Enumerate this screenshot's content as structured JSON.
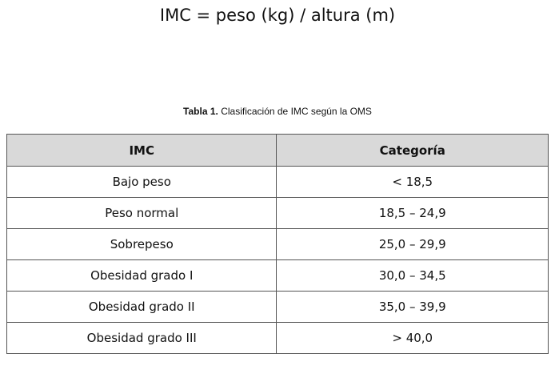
{
  "formula": "IMC = peso (kg) / altura (m)",
  "caption": {
    "label": "Tabla 1.",
    "text": "Clasificación de IMC según la OMS"
  },
  "table": {
    "headers": [
      "IMC",
      "Categoría"
    ],
    "rows": [
      [
        "Bajo peso",
        "< 18,5"
      ],
      [
        "Peso normal",
        "18,5 – 24,9"
      ],
      [
        "Sobrepeso",
        "25,0 – 29,9"
      ],
      [
        "Obesidad grado I",
        "30,0 – 34,5"
      ],
      [
        "Obesidad grado II",
        "35,0 – 39,9"
      ],
      [
        "Obesidad grado III",
        "> 40,0"
      ]
    ]
  },
  "colors": {
    "header_background": "#d9d9d9",
    "border": "#555555",
    "text": "#111111"
  }
}
